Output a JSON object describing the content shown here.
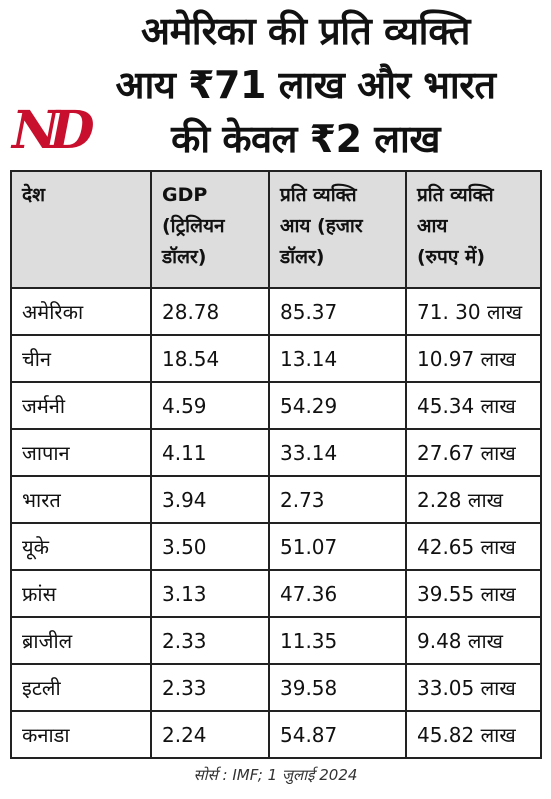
{
  "logo": "ND",
  "title": [
    "अमेरिका की प्रति व्यक्ति",
    "आय ₹71 लाख और भारत",
    "की केवल ₹2 लाख"
  ],
  "table": {
    "header": [
      [
        "देश"
      ],
      [
        "GDP",
        "(ट्रिलियन",
        "डॉलर)"
      ],
      [
        "प्रति व्यक्ति",
        "आय (हजार",
        "डॉलर)"
      ],
      [
        "प्रति व्यक्ति",
        "आय",
        "(रुपए में)"
      ]
    ],
    "rows": [
      [
        "अमेरिका",
        "28.78",
        "85.37",
        "71. 30 लाख"
      ],
      [
        "चीन",
        "18.54",
        "13.14",
        "10.97 लाख"
      ],
      [
        "जर्मनी",
        "4.59",
        "54.29",
        "45.34 लाख"
      ],
      [
        "जापान",
        "4.11",
        "33.14",
        "27.67 लाख"
      ],
      [
        "भारत",
        "3.94",
        "2.73",
        "2.28 लाख"
      ],
      [
        "यूके",
        "3.50",
        "51.07",
        "42.65 लाख"
      ],
      [
        "फ्रांस",
        "3.13",
        "47.36",
        "39.55 लाख"
      ],
      [
        "ब्राजील",
        "2.33",
        "11.35",
        "9.48 लाख"
      ],
      [
        "इटली",
        "2.33",
        "39.58",
        "33.05 लाख"
      ],
      [
        "कनाडा",
        "2.24",
        "54.87",
        "45.82 लाख"
      ]
    ]
  },
  "source": "सोर्स : IMF; 1 जुलाई 2024"
}
